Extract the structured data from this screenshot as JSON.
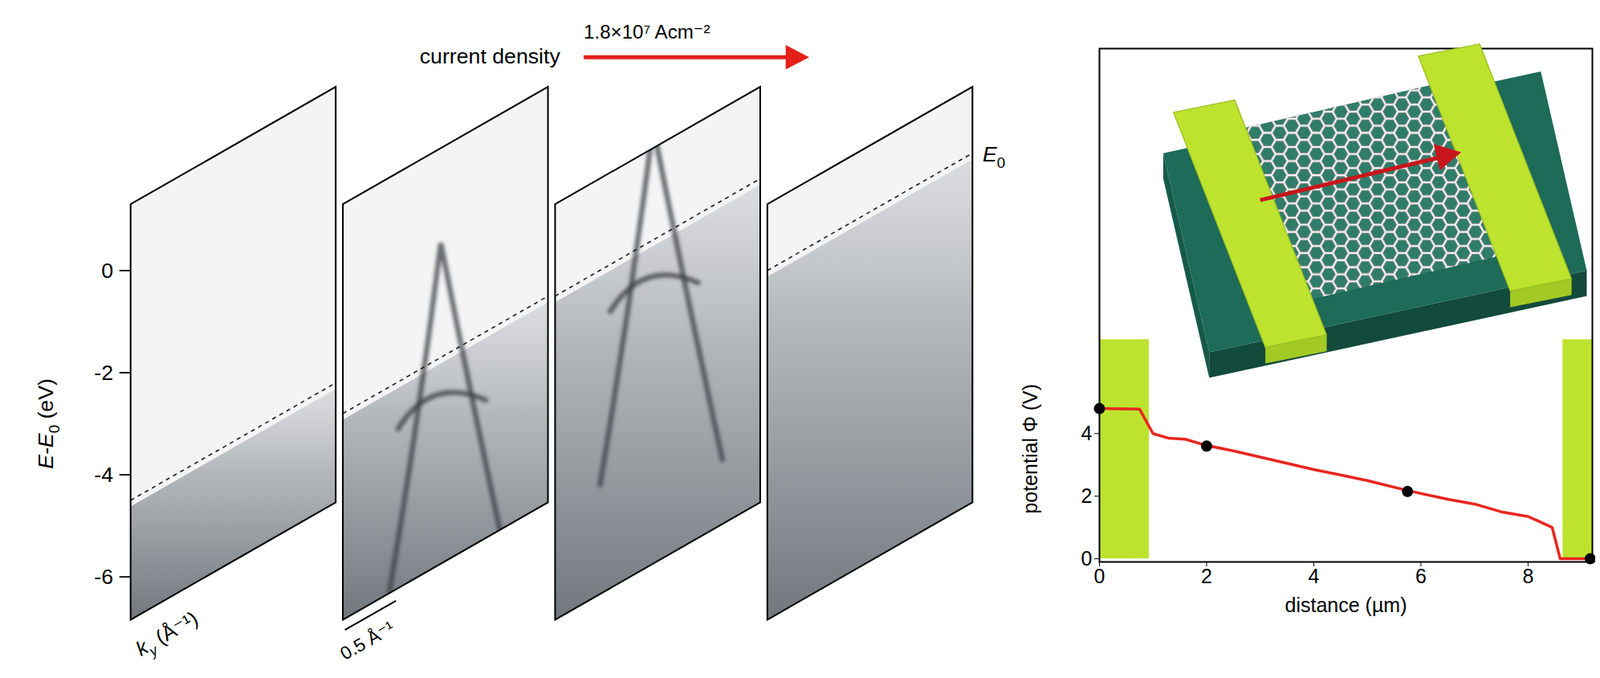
{
  "arpes": {
    "current_density_label": "current density",
    "current_density": "1.8×10⁷ Acm⁻²",
    "y_label": {
      "text": "E-E",
      "sub": "0",
      "unit": " (eV)"
    },
    "ylim": [
      -6.84,
      1.3
    ],
    "yticks": [
      0,
      -2,
      -4,
      -6
    ],
    "x_label": {
      "text": "k",
      "sub": "y",
      "unit": " (Å⁻¹)"
    },
    "scale_bar": "0.5 Å⁻¹",
    "e0_label": {
      "text": "E",
      "sub": "0"
    },
    "e0_levels": [
      -4.5,
      -2.8,
      -0.5,
      0
    ],
    "cone_visible": [
      false,
      true,
      true,
      false
    ]
  },
  "chart_data": {
    "type": "line",
    "x_label": "distance (µm)",
    "y_label": "potential Φ (V)",
    "x": [
      0,
      0.75,
      1.0,
      1.3,
      1.6,
      2,
      2.5,
      3,
      3.5,
      4,
      4.5,
      5,
      5.75,
      6.5,
      7,
      7.5,
      8,
      8.2,
      8.45,
      8.6,
      9.2
    ],
    "values": [
      4.8,
      4.78,
      4.0,
      3.85,
      3.82,
      3.62,
      3.45,
      3.25,
      3.05,
      2.85,
      2.68,
      2.5,
      2.18,
      1.9,
      1.75,
      1.5,
      1.35,
      1.2,
      1.0,
      0.0,
      0.0
    ],
    "color": "#e8251f",
    "marker": "circle",
    "marker_points": {
      "x": [
        0,
        2,
        5.75,
        9.16
      ],
      "y": [
        4.8,
        3.6,
        2.15,
        0
      ]
    },
    "electrodes": [
      {
        "x1": 0,
        "x2": 0.93,
        "y1": 0,
        "y2": 7.0
      },
      {
        "x1": 8.65,
        "x2": 9.2,
        "y1": 0,
        "y2": 7.0
      }
    ],
    "electrode_color": "#bde32f",
    "xlim": [
      0,
      9.2
    ],
    "ylim": [
      -0.1,
      16.3
    ],
    "xticks": [
      0,
      2,
      4,
      6,
      8
    ],
    "yticks": [
      0,
      2,
      4
    ],
    "grid": false
  }
}
